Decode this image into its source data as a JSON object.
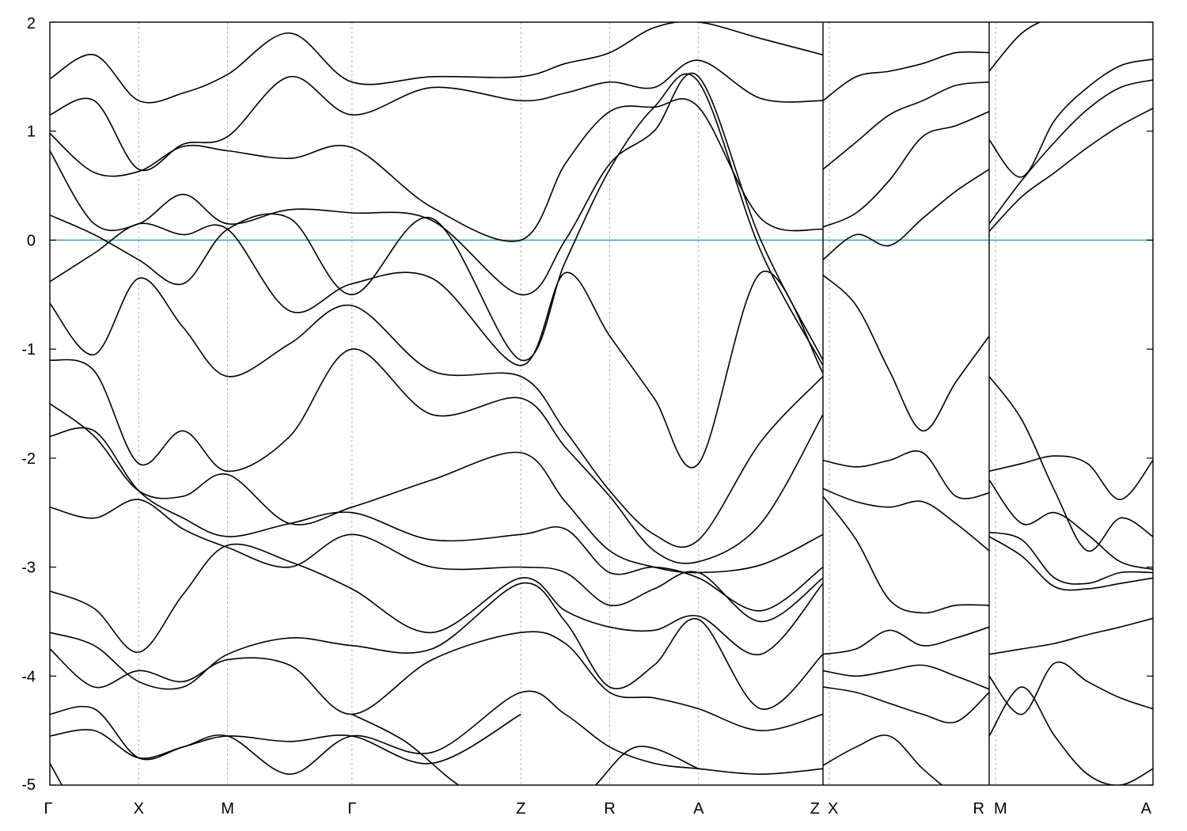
{
  "chart_data": {
    "type": "line",
    "title": "",
    "xlabel": "",
    "ylabel": "",
    "ylim": [
      -5,
      2
    ],
    "yticks": [
      2,
      1,
      0,
      -1,
      -2,
      -3,
      -4,
      -5
    ],
    "ytick_labels": [
      "2",
      "1",
      "0",
      "-1",
      "-2",
      "-3",
      "-4",
      "-5"
    ],
    "grid": "vertical dotted lines at high-symmetry points",
    "legend": "none",
    "colors": {
      "bands": "#000000",
      "fermi_level": "#4aa3c8",
      "grid": "#b4b4b4"
    },
    "fermi_level": 0,
    "panels": [
      {
        "k_points": [
          "Γ",
          "X",
          "M",
          "Γ",
          "Z",
          "R",
          "A",
          "Z"
        ],
        "k": [
          0,
          1,
          2,
          3.4,
          5.3,
          6.3,
          7.3,
          8.7
        ]
      },
      {
        "k_points": [
          "X",
          "R"
        ],
        "k": [
          0,
          1
        ]
      },
      {
        "k_points": [
          "M",
          "A"
        ],
        "k": [
          0,
          1
        ]
      }
    ],
    "bands": [
      {
        "panel": 0,
        "x": [
          0,
          0.5,
          1,
          1.5,
          2,
          2.7,
          3.4,
          4.3,
          5.3,
          5.8,
          6.3,
          6.8,
          7.3,
          8,
          8.7
        ],
        "y": [
          1.48,
          1.7,
          1.28,
          1.35,
          1.52,
          1.9,
          1.45,
          1.5,
          1.5,
          1.62,
          1.72,
          1.95,
          2.0,
          1.85,
          1.7
        ]
      },
      {
        "panel": 0,
        "x": [
          0,
          0.5,
          1,
          1.5,
          2,
          2.7,
          3.4,
          4.3,
          5.3,
          5.8,
          6.3,
          6.8,
          7.3,
          8,
          8.7
        ],
        "y": [
          1.15,
          1.28,
          0.65,
          0.88,
          0.95,
          1.5,
          1.15,
          1.4,
          1.28,
          1.35,
          1.45,
          1.4,
          1.65,
          1.3,
          1.28
        ]
      },
      {
        "panel": 0,
        "x": [
          0,
          0.5,
          1,
          1.5,
          2,
          2.7,
          3.4,
          4.3,
          5.3,
          5.8,
          6.3,
          6.8,
          7.3,
          8,
          8.7
        ],
        "y": [
          0.98,
          0.62,
          0.63,
          0.86,
          0.82,
          0.75,
          0.85,
          0.3,
          0.0,
          0.7,
          1.18,
          1.22,
          1.22,
          0.2,
          0.1
        ]
      },
      {
        "panel": 0,
        "x": [
          0,
          0.5,
          1,
          1.5,
          2,
          2.7,
          3.4,
          4.3,
          5.3,
          5.8,
          6.3,
          6.8,
          7.3,
          8,
          8.7
        ],
        "y": [
          0.82,
          0.15,
          0.15,
          0.42,
          0.15,
          0.28,
          0.25,
          0.18,
          -0.5,
          0.0,
          0.7,
          1.0,
          1.5,
          0.0,
          -1.1
        ]
      },
      {
        "panel": 0,
        "x": [
          0,
          0.5,
          1,
          1.5,
          2,
          2.7,
          3.4,
          4.3,
          5.3,
          5.8,
          6.3,
          6.8,
          7.3,
          8,
          8.7
        ],
        "y": [
          0.23,
          0.05,
          -0.18,
          -0.4,
          0.1,
          0.2,
          -0.5,
          0.2,
          -1.1,
          -0.2,
          0.65,
          1.22,
          1.45,
          -0.1,
          -1.15
        ]
      },
      {
        "panel": 0,
        "x": [
          0,
          0.5,
          1,
          1.5,
          2,
          2.7,
          3.4,
          4.3,
          5.3,
          5.8,
          6.3,
          6.8,
          7.3,
          8,
          8.7
        ],
        "y": [
          -0.38,
          -0.12,
          0.15,
          0.05,
          0.1,
          -0.65,
          -0.4,
          -0.35,
          -1.15,
          -0.3,
          -0.88,
          -1.45,
          -2.05,
          -0.3,
          -1.22
        ]
      },
      {
        "panel": 0,
        "x": [
          0,
          0.5,
          1,
          1.5,
          2,
          2.7,
          3.4,
          4.3,
          5.3,
          5.8,
          6.3,
          6.8,
          7.3,
          8,
          8.7
        ],
        "y": [
          -0.58,
          -1.05,
          -0.35,
          -0.8,
          -1.25,
          -0.95,
          -0.6,
          -1.2,
          -1.25,
          -1.75,
          -2.3,
          -2.7,
          -2.75,
          -1.85,
          -1.25
        ]
      },
      {
        "panel": 0,
        "x": [
          0,
          0.5,
          1,
          1.5,
          2,
          2.7,
          3.4,
          4.3,
          5.3,
          5.8,
          6.3,
          6.8,
          7.3,
          8,
          8.7
        ],
        "y": [
          -1.1,
          -1.2,
          -2.05,
          -1.75,
          -2.12,
          -1.8,
          -1.0,
          -1.6,
          -1.45,
          -1.9,
          -2.35,
          -2.85,
          -2.95,
          -2.6,
          -1.6
        ]
      },
      {
        "panel": 0,
        "x": [
          0,
          0.5,
          1,
          1.5,
          2,
          2.7,
          3.4,
          4.3,
          5.3,
          5.8,
          6.3,
          6.8,
          7.3,
          8,
          8.7
        ],
        "y": [
          -1.5,
          -1.8,
          -2.3,
          -2.35,
          -2.15,
          -2.6,
          -2.45,
          -2.2,
          -1.95,
          -2.4,
          -2.85,
          -3.0,
          -3.05,
          -2.98,
          -2.7
        ]
      },
      {
        "panel": 0,
        "x": [
          0,
          0.5,
          1,
          1.5,
          2,
          2.7,
          3.4,
          4.3,
          5.3,
          5.8,
          6.3,
          6.8,
          7.3,
          8,
          8.7
        ],
        "y": [
          -1.8,
          -1.75,
          -2.3,
          -2.55,
          -2.72,
          -2.6,
          -2.5,
          -2.75,
          -2.7,
          -2.65,
          -3.05,
          -3.0,
          -3.1,
          -3.4,
          -3.0
        ]
      },
      {
        "panel": 0,
        "x": [
          0,
          0.5,
          1,
          1.5,
          2,
          2.7,
          3.4,
          4.3,
          5.3,
          5.8,
          6.3,
          6.8,
          7.3,
          8,
          8.7
        ],
        "y": [
          -2.45,
          -2.55,
          -2.38,
          -2.65,
          -2.82,
          -3.0,
          -2.7,
          -3.0,
          -3.0,
          -3.05,
          -3.35,
          -3.2,
          -3.05,
          -3.5,
          -3.1
        ]
      },
      {
        "panel": 0,
        "x": [
          0,
          0.5,
          1,
          1.5,
          2,
          2.7,
          3.4,
          4.3,
          5.3,
          5.8,
          6.3,
          6.8,
          7.3,
          8,
          8.7
        ],
        "y": [
          -3.22,
          -3.38,
          -3.78,
          -3.25,
          -2.8,
          -2.95,
          -3.2,
          -3.6,
          -3.1,
          -3.4,
          -3.55,
          -3.58,
          -3.45,
          -3.8,
          -3.15
        ]
      },
      {
        "panel": 0,
        "x": [
          0,
          0.5,
          1,
          1.5,
          2,
          2.7,
          3.4,
          4.3,
          5.3,
          5.8,
          6.3,
          6.8,
          7.3,
          8,
          8.7
        ],
        "y": [
          -3.6,
          -3.72,
          -4.05,
          -4.1,
          -3.8,
          -3.65,
          -3.72,
          -3.75,
          -3.15,
          -3.5,
          -4.1,
          -3.9,
          -3.48,
          -4.3,
          -3.8
        ]
      },
      {
        "panel": 0,
        "x": [
          0,
          0.5,
          1,
          1.5,
          2,
          2.7,
          3.4,
          4.3,
          5.3,
          5.8,
          6.3,
          6.8,
          7.3,
          8,
          8.7
        ],
        "y": [
          -3.75,
          -4.1,
          -3.95,
          -4.05,
          -3.85,
          -3.9,
          -4.35,
          -3.85,
          -3.6,
          -3.7,
          -4.15,
          -4.2,
          -4.3,
          -4.5,
          -4.35
        ]
      },
      {
        "panel": 0,
        "x": [
          0,
          0.5,
          1,
          1.5,
          2,
          2.7,
          3.4,
          4.3,
          5.3,
          5.8,
          6.3,
          6.8,
          7.3,
          8,
          8.7
        ],
        "y": [
          -4.35,
          -4.3,
          -4.75,
          -4.65,
          -4.55,
          -4.9,
          -4.55,
          -4.7,
          -4.15,
          -4.35,
          -4.65,
          -4.8,
          -4.85,
          -4.9,
          -4.85
        ]
      },
      {
        "panel": 0,
        "x": [
          0,
          0.5,
          1,
          1.5,
          2,
          2.7,
          3.4,
          4.3,
          5.3
        ],
        "y": [
          -4.55,
          -4.5,
          -4.75,
          -4.65,
          -4.55,
          -4.6,
          -4.55,
          -4.8,
          -4.35
        ]
      },
      {
        "panel": 0,
        "x": [
          0,
          0.3,
          0.6,
          1.0
        ],
        "y": [
          -4.8,
          -5.2,
          -5.3,
          -5.4
        ]
      },
      {
        "panel": 0,
        "x": [
          3.4,
          4.0,
          4.6,
          5.3,
          6.0,
          6.6,
          7.3
        ],
        "y": [
          -4.35,
          -4.6,
          -5.0,
          -5.3,
          -5.1,
          -4.65,
          -4.85
        ]
      },
      {
        "panel": 1,
        "x": [
          0,
          0.2,
          0.4,
          0.6,
          0.8,
          1.0
        ],
        "y": [
          1.28,
          1.5,
          1.55,
          1.62,
          1.72,
          1.72
        ]
      },
      {
        "panel": 1,
        "x": [
          0,
          0.2,
          0.4,
          0.6,
          0.8,
          1.0
        ],
        "y": [
          0.65,
          0.9,
          1.15,
          1.28,
          1.42,
          1.45
        ]
      },
      {
        "panel": 1,
        "x": [
          0,
          0.2,
          0.4,
          0.6,
          0.8,
          1.0
        ],
        "y": [
          0.12,
          0.25,
          0.55,
          0.95,
          1.05,
          1.18
        ]
      },
      {
        "panel": 1,
        "x": [
          0,
          0.2,
          0.4,
          0.6,
          0.8,
          1.0
        ],
        "y": [
          -0.18,
          0.05,
          -0.05,
          0.2,
          0.45,
          0.65
        ]
      },
      {
        "panel": 1,
        "x": [
          0,
          0.2,
          0.4,
          0.6,
          0.8,
          1.0
        ],
        "y": [
          -0.32,
          -0.6,
          -1.2,
          -1.75,
          -1.3,
          -0.88
        ]
      },
      {
        "panel": 1,
        "x": [
          0,
          0.2,
          0.4,
          0.6,
          0.8,
          1.0
        ],
        "y": [
          -2.02,
          -2.08,
          -2.02,
          -1.95,
          -2.35,
          -2.32
        ]
      },
      {
        "panel": 1,
        "x": [
          0,
          0.2,
          0.4,
          0.6,
          0.8,
          1.0
        ],
        "y": [
          -2.28,
          -2.4,
          -2.45,
          -2.4,
          -2.6,
          -2.85
        ]
      },
      {
        "panel": 1,
        "x": [
          0,
          0.2,
          0.4,
          0.6,
          0.8,
          1.0
        ],
        "y": [
          -2.35,
          -2.75,
          -3.3,
          -3.42,
          -3.35,
          -3.35
        ]
      },
      {
        "panel": 1,
        "x": [
          0,
          0.2,
          0.4,
          0.6,
          0.8,
          1.0
        ],
        "y": [
          -3.8,
          -3.75,
          -3.58,
          -3.72,
          -3.65,
          -3.55
        ]
      },
      {
        "panel": 1,
        "x": [
          0,
          0.2,
          0.4,
          0.6,
          0.8,
          1.0
        ],
        "y": [
          -3.95,
          -4.0,
          -3.95,
          -3.9,
          -4.0,
          -4.12
        ]
      },
      {
        "panel": 1,
        "x": [
          0,
          0.2,
          0.4,
          0.6,
          0.8,
          1.0
        ],
        "y": [
          -4.1,
          -4.15,
          -4.25,
          -4.35,
          -4.42,
          -4.15
        ]
      },
      {
        "panel": 1,
        "x": [
          0,
          0.2,
          0.4,
          0.6,
          0.8,
          1.0
        ],
        "y": [
          -4.82,
          -4.65,
          -4.55,
          -4.85,
          -5.1,
          -5.3
        ]
      },
      {
        "panel": 2,
        "x": [
          0,
          0.2,
          0.4,
          0.6,
          0.8,
          1.0
        ],
        "y": [
          1.55,
          1.9,
          2.05,
          2.1,
          2.2,
          2.3
        ]
      },
      {
        "panel": 2,
        "x": [
          0,
          0.2,
          0.4,
          0.6,
          0.8,
          1.0
        ],
        "y": [
          0.92,
          0.58,
          1.1,
          1.4,
          1.6,
          1.66
        ]
      },
      {
        "panel": 2,
        "x": [
          0,
          0.2,
          0.4,
          0.6,
          0.8,
          1.0
        ],
        "y": [
          0.15,
          0.55,
          0.9,
          1.2,
          1.4,
          1.47
        ]
      },
      {
        "panel": 2,
        "x": [
          0,
          0.2,
          0.4,
          0.6,
          0.8,
          1.0
        ],
        "y": [
          0.08,
          0.4,
          0.62,
          0.85,
          1.05,
          1.21
        ]
      },
      {
        "panel": 2,
        "x": [
          0,
          0.2,
          0.4,
          0.6,
          0.8,
          1.0
        ],
        "y": [
          -1.25,
          -1.65,
          -2.3,
          -2.85,
          -2.55,
          -2.72
        ]
      },
      {
        "panel": 2,
        "x": [
          0,
          0.2,
          0.4,
          0.6,
          0.8,
          1.0
        ],
        "y": [
          -2.12,
          -2.05,
          -1.98,
          -2.05,
          -2.38,
          -2.02
        ]
      },
      {
        "panel": 2,
        "x": [
          0,
          0.2,
          0.4,
          0.6,
          0.8,
          1.0
        ],
        "y": [
          -2.2,
          -2.6,
          -2.5,
          -2.7,
          -2.95,
          -3.02
        ]
      },
      {
        "panel": 2,
        "x": [
          0,
          0.2,
          0.4,
          0.6,
          0.8,
          1.0
        ],
        "y": [
          -2.68,
          -2.75,
          -3.1,
          -3.15,
          -3.05,
          -3.05
        ]
      },
      {
        "panel": 2,
        "x": [
          0,
          0.2,
          0.4,
          0.6,
          0.8,
          1.0
        ],
        "y": [
          -2.72,
          -2.9,
          -3.18,
          -3.2,
          -3.15,
          -3.1
        ]
      },
      {
        "panel": 2,
        "x": [
          0,
          0.2,
          0.4,
          0.6,
          0.8,
          1.0
        ],
        "y": [
          -3.8,
          -3.75,
          -3.7,
          -3.62,
          -3.55,
          -3.47
        ]
      },
      {
        "panel": 2,
        "x": [
          0,
          0.2,
          0.4,
          0.6,
          0.8,
          1.0
        ],
        "y": [
          -4.0,
          -4.35,
          -3.88,
          -4.05,
          -4.2,
          -4.3
        ]
      },
      {
        "panel": 2,
        "x": [
          0,
          0.2,
          0.4,
          0.6,
          0.8,
          1.0
        ],
        "y": [
          -4.55,
          -4.1,
          -4.55,
          -4.9,
          -5.0,
          -4.85
        ]
      }
    ]
  }
}
